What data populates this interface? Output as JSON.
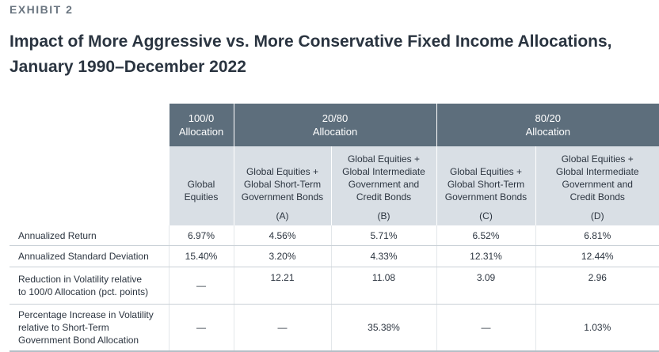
{
  "exhibit_label": "EXHIBIT 2",
  "title_line1": "Impact of More Aggressive vs. More Conservative Fixed Income Allocations,",
  "title_line2": "January 1990–December 2022",
  "header": {
    "group1": [
      "100/0",
      "Allocation"
    ],
    "group2": [
      "20/80",
      "Allocation"
    ],
    "group3": [
      "80/20",
      "Allocation"
    ]
  },
  "subheaders": {
    "global": [
      "Global",
      "Equities"
    ],
    "a": [
      "Global Equities +",
      "Global Short-Term",
      "Government Bonds"
    ],
    "b": [
      "Global Equities +",
      "Global Intermediate",
      "Government and",
      "Credit Bonds"
    ],
    "c": [
      "Global Equities +",
      "Global Short-Term",
      "Government Bonds"
    ],
    "d": [
      "Global Equities +",
      "Global Intermediate",
      "Government and",
      "Credit Bonds"
    ]
  },
  "letters": [
    "(A)",
    "(B)",
    "(C)",
    "(D)"
  ],
  "rows": [
    {
      "label": [
        "Annualized Return"
      ],
      "values": [
        "6.97%",
        "4.56%",
        "5.71%",
        "6.52%",
        "6.81%"
      ]
    },
    {
      "label": [
        "Annualized Standard Deviation"
      ],
      "values": [
        "15.40%",
        "3.20%",
        "4.33%",
        "12.31%",
        "12.44%"
      ]
    },
    {
      "label": [
        "Reduction in Volatility relative",
        "to 100/0 Allocation (pct. points)"
      ],
      "values": [
        "—",
        "12.21",
        "11.08",
        "3.09",
        "2.96"
      ]
    },
    {
      "label": [
        "Percentage Increase in Volatility",
        "relative to Short-Term",
        "Government Bond Allocation"
      ],
      "values": [
        "—",
        "—",
        "35.38%",
        "—",
        "1.03%"
      ]
    }
  ]
}
